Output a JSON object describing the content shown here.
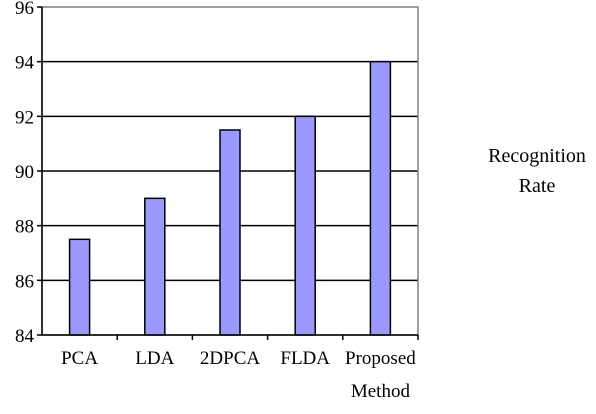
{
  "chart_data": {
    "type": "bar",
    "categories": [
      "PCA",
      "LDA",
      "2DPCA",
      "FLDA",
      "Proposed Method"
    ],
    "category_label_lines": [
      [
        "PCA"
      ],
      [
        "LDA"
      ],
      [
        "2DPCA"
      ],
      [
        "FLDA"
      ],
      [
        "Proposed",
        "Method"
      ]
    ],
    "series": [
      {
        "name": "Recognition Rate",
        "values": [
          87.5,
          89,
          91.5,
          92,
          94
        ],
        "color": "#9999ff"
      }
    ],
    "yticks": [
      "84",
      "86",
      "88",
      "90",
      "92",
      "94",
      "96"
    ],
    "ylim": [
      84,
      96
    ],
    "grid": true,
    "legend_placement": "right",
    "legend_lines": [
      "Recognition",
      "Rate"
    ],
    "bar_color": "#9999ff",
    "bar_stroke": "#000000"
  }
}
